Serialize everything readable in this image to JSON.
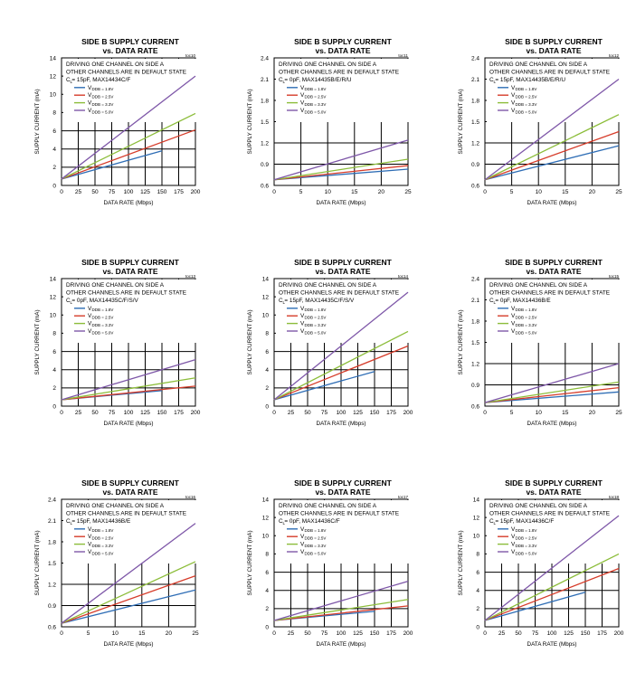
{
  "colors": {
    "s18": "#2e6db5",
    "s25": "#d63c2a",
    "s33": "#8cbd3a",
    "s50": "#7e57a8",
    "grid": "#000000"
  },
  "legend_labels": [
    "V",
    "V",
    "V",
    "V"
  ],
  "chart_data": [
    {
      "type": "line",
      "code": "toc10",
      "title": "SIDE B SUPPLY CURRENT",
      "subtitle": "vs. DATA RATE",
      "xlabel": "DATA RATE (Mbps)",
      "ylabel": "SUPPLY CURRENT (mA)",
      "xlim": [
        0,
        200
      ],
      "ylim": [
        0,
        14
      ],
      "xticks": [
        "0",
        "25",
        "50",
        "75",
        "100",
        "125",
        "150",
        "175",
        "200"
      ],
      "yticks": [
        "0",
        "2",
        "4",
        "6",
        "8",
        "10",
        "12",
        "14"
      ],
      "note": [
        "DRIVING ONE CHANNEL ON SIDE A",
        "OTHER CHANNELS ARE IN DEFAULT STATE",
        "C = 15pF, MAX14434C/F"
      ],
      "legend": [
        "DDB = 1.8V",
        "DDB = 2.5V",
        "DDB = 3.3V",
        "DDB = 5.0V"
      ],
      "series": [
        {
          "values": [
            [
              0,
              0.7
            ],
            [
              150,
              3.8
            ]
          ]
        },
        {
          "values": [
            [
              0,
              0.7
            ],
            [
              200,
              6.1
            ]
          ]
        },
        {
          "values": [
            [
              0,
              0.7
            ],
            [
              200,
              7.9
            ]
          ]
        },
        {
          "values": [
            [
              0,
              0.7
            ],
            [
              200,
              12.0
            ]
          ]
        }
      ]
    },
    {
      "type": "line",
      "code": "toc11",
      "title": "SIDE B SUPPLY CURRENT",
      "subtitle": "vs. DATA RATE",
      "xlabel": "DATA RATE (Mbps)",
      "ylabel": "SUPPLY CURRENT (mA)",
      "xlim": [
        0,
        25
      ],
      "ylim": [
        0.6,
        2.4
      ],
      "xticks": [
        "0",
        "5",
        "10",
        "15",
        "20",
        "25"
      ],
      "yticks": [
        "0.6",
        "0.9",
        "1.2",
        "1.5",
        "1.8",
        "2.1",
        "2.4"
      ],
      "note": [
        "DRIVING ONE CHANNEL ON SIDE A",
        "OTHER CHANNELS ARE IN DEFAULT STATE",
        "C = 0pF, MAX14435B/E/R/U"
      ],
      "legend": [
        "DDB = 1.8V",
        "DDB = 2.5V",
        "DDB = 3.3V",
        "DDB = 5.0V"
      ],
      "series": [
        {
          "values": [
            [
              0,
              0.68
            ],
            [
              25,
              0.83
            ]
          ]
        },
        {
          "values": [
            [
              0,
              0.68
            ],
            [
              25,
              0.88
            ]
          ]
        },
        {
          "values": [
            [
              0,
              0.68
            ],
            [
              25,
              0.97
            ]
          ]
        },
        {
          "values": [
            [
              0,
              0.68
            ],
            [
              25,
              1.24
            ]
          ]
        }
      ]
    },
    {
      "type": "line",
      "code": "toc12",
      "title": "SIDE B SUPPLY CURRENT",
      "subtitle": "vs. DATA RATE",
      "xlabel": "DATA RATE (Mbps)",
      "ylabel": "SUPPLY CURRENT (mA)",
      "xlim": [
        0,
        25
      ],
      "ylim": [
        0.6,
        2.4
      ],
      "xticks": [
        "0",
        "5",
        "10",
        "15",
        "20",
        "25"
      ],
      "yticks": [
        "0.6",
        "0.9",
        "1.2",
        "1.5",
        "1.8",
        "2.1",
        "2.4"
      ],
      "note": [
        "DRIVING ONE CHANNEL ON SIDE A",
        "OTHER CHANNELS ARE IN DEFAULT STATE",
        "C = 15pF, MAX14435B/E/R/U"
      ],
      "legend": [
        "DDB = 1.8V",
        "DDB = 2.5V",
        "DDB = 3.3V",
        "DDB = 5.0V"
      ],
      "series": [
        {
          "values": [
            [
              0,
              0.68
            ],
            [
              25,
              1.16
            ]
          ]
        },
        {
          "values": [
            [
              0,
              0.68
            ],
            [
              25,
              1.36
            ]
          ]
        },
        {
          "values": [
            [
              0,
              0.68
            ],
            [
              25,
              1.6
            ]
          ]
        },
        {
          "values": [
            [
              0,
              0.68
            ],
            [
              25,
              2.1
            ]
          ]
        }
      ]
    },
    {
      "type": "line",
      "code": "toc13",
      "title": "SIDE B SUPPLY CURRENT",
      "subtitle": "vs. DATA RATE",
      "xlabel": "DATA RATE (Mbps)",
      "ylabel": "SUPPLY CURRENT (mA)",
      "xlim": [
        0,
        200
      ],
      "ylim": [
        0,
        14
      ],
      "xticks": [
        "0",
        "25",
        "50",
        "75",
        "100",
        "125",
        "150",
        "175",
        "200"
      ],
      "yticks": [
        "0",
        "2",
        "4",
        "6",
        "8",
        "10",
        "12",
        "14"
      ],
      "note": [
        "DRIVING ONE CHANNEL ON SIDE A",
        "OTHER CHANNELS ARE IN DEFAULT STATE",
        "C = 0pF, MAX14435C/F/S/V"
      ],
      "legend": [
        "DDB = 1.8V",
        "DDB = 2.5V",
        "DDB = 3.3V",
        "DDB = 5.0V"
      ],
      "series": [
        {
          "values": [
            [
              0,
              0.7
            ],
            [
              150,
              1.7
            ]
          ]
        },
        {
          "values": [
            [
              0,
              0.7
            ],
            [
              200,
              2.2
            ]
          ]
        },
        {
          "values": [
            [
              0,
              0.7
            ],
            [
              200,
              3.1
            ]
          ]
        },
        {
          "values": [
            [
              0,
              0.7
            ],
            [
              200,
              5.1
            ]
          ]
        }
      ]
    },
    {
      "type": "line",
      "code": "toc14",
      "title": "SIDE B SUPPLY CURRENT",
      "subtitle": "vs. DATA RATE",
      "xlabel": "DATA RATE (Mbps)",
      "ylabel": "SUPPLY CURRENT (mA)",
      "xlim": [
        0,
        200
      ],
      "ylim": [
        0,
        14
      ],
      "xticks": [
        "0",
        "25",
        "50",
        "75",
        "100",
        "125",
        "150",
        "175",
        "200"
      ],
      "yticks": [
        "0",
        "2",
        "4",
        "6",
        "8",
        "10",
        "12",
        "14"
      ],
      "note": [
        "DRIVING ONE CHANNEL ON SIDE A",
        "OTHER CHANNELS ARE IN DEFAULT STATE",
        "C = 15pF, MAX14435C/F/S/V"
      ],
      "legend": [
        "DDB = 1.8V",
        "DDB = 2.5V",
        "DDB = 3.3V",
        "DDB = 5.0V"
      ],
      "series": [
        {
          "values": [
            [
              0,
              0.7
            ],
            [
              150,
              3.8
            ]
          ]
        },
        {
          "values": [
            [
              0,
              0.7
            ],
            [
              200,
              6.6
            ]
          ]
        },
        {
          "values": [
            [
              0,
              0.7
            ],
            [
              200,
              8.2
            ]
          ]
        },
        {
          "values": [
            [
              0,
              0.7
            ],
            [
              200,
              12.5
            ]
          ]
        }
      ]
    },
    {
      "type": "line",
      "code": "toc15",
      "title": "SIDE B SUPPLY CURRENT",
      "subtitle": "vs. DATA RATE",
      "xlabel": "DATA RATE (Mbps)",
      "ylabel": "SUPPLY CURRENT (mA)",
      "xlim": [
        0,
        25
      ],
      "ylim": [
        0.6,
        2.4
      ],
      "xticks": [
        "0",
        "5",
        "10",
        "15",
        "20",
        "25"
      ],
      "yticks": [
        "0.6",
        "0.9",
        "1.2",
        "1.5",
        "1.8",
        "2.1",
        "2.4"
      ],
      "note": [
        "DRIVING ONE CHANNEL ON SIDE A",
        "OTHER CHANNELS ARE IN DEFAULT STATE",
        "C = 0pF, MAX14436B/E"
      ],
      "legend": [
        "DDB = 1.8V",
        "DDB = 2.5V",
        "DDB = 3.3V",
        "DDB = 5.0V"
      ],
      "series": [
        {
          "values": [
            [
              0,
              0.65
            ],
            [
              25,
              0.8
            ]
          ]
        },
        {
          "values": [
            [
              0,
              0.65
            ],
            [
              25,
              0.86
            ]
          ]
        },
        {
          "values": [
            [
              0,
              0.65
            ],
            [
              25,
              0.94
            ]
          ]
        },
        {
          "values": [
            [
              0,
              0.65
            ],
            [
              25,
              1.2
            ]
          ]
        }
      ]
    },
    {
      "type": "line",
      "code": "toc16",
      "title": "SIDE B SUPPLY CURRENT",
      "subtitle": "vs. DATA RATE",
      "xlabel": "DATA RATE (Mbps)",
      "ylabel": "SUPPLY CURRENT (mA)",
      "xlim": [
        0,
        25
      ],
      "ylim": [
        0.6,
        2.4
      ],
      "xticks": [
        "0",
        "5",
        "10",
        "15",
        "20",
        "25"
      ],
      "yticks": [
        "0.6",
        "0.9",
        "1.2",
        "1.5",
        "1.8",
        "2.1",
        "2.4"
      ],
      "note": [
        "DRIVING ONE CHANNEL ON SIDE A",
        "OTHER CHANNELS ARE IN DEFAULT STATE",
        "C = 15pF, MAX14436B/E"
      ],
      "legend": [
        "DDB = 1.8V",
        "DDB = 2.5V",
        "DDB = 3.3V",
        "DDB = 5.0V"
      ],
      "series": [
        {
          "values": [
            [
              0,
              0.65
            ],
            [
              25,
              1.12
            ]
          ]
        },
        {
          "values": [
            [
              0,
              0.65
            ],
            [
              25,
              1.32
            ]
          ]
        },
        {
          "values": [
            [
              0,
              0.65
            ],
            [
              25,
              1.52
            ]
          ]
        },
        {
          "values": [
            [
              0,
              0.65
            ],
            [
              25,
              2.06
            ]
          ]
        }
      ]
    },
    {
      "type": "line",
      "code": "toc17",
      "title": "SIDE B SUPPLY CURRENT",
      "subtitle": "vs. DATA RATE",
      "xlabel": "DATA RATE (Mbps)",
      "ylabel": "SUPPLY CURRENT (mA)",
      "xlim": [
        0,
        200
      ],
      "ylim": [
        0,
        14
      ],
      "xticks": [
        "0",
        "25",
        "50",
        "75",
        "100",
        "125",
        "150",
        "175",
        "200"
      ],
      "yticks": [
        "0",
        "2",
        "4",
        "6",
        "8",
        "10",
        "12",
        "14"
      ],
      "note": [
        "DRIVING ONE CHANNEL ON SIDE A",
        "OTHER CHANNELS ARE IN DEFAULT STATE",
        "C = 0pF, MAX14436C/F"
      ],
      "legend": [
        "DDB = 1.8V",
        "DDB = 2.5V",
        "DDB = 3.3V",
        "DDB = 5.0V"
      ],
      "series": [
        {
          "values": [
            [
              0,
              0.7
            ],
            [
              150,
              1.7
            ]
          ]
        },
        {
          "values": [
            [
              0,
              0.7
            ],
            [
              200,
              2.3
            ]
          ]
        },
        {
          "values": [
            [
              0,
              0.7
            ],
            [
              200,
              3.0
            ]
          ]
        },
        {
          "values": [
            [
              0,
              0.7
            ],
            [
              200,
              5.0
            ]
          ]
        }
      ]
    },
    {
      "type": "line",
      "code": "toc18",
      "title": "SIDE B SUPPLY CURRENT",
      "subtitle": "vs. DATA RATE",
      "xlabel": "DATA RATE (Mbps)",
      "ylabel": "SUPPLY CURRENT (mA)",
      "xlim": [
        0,
        200
      ],
      "ylim": [
        0,
        14
      ],
      "xticks": [
        "0",
        "25",
        "50",
        "75",
        "100",
        "125",
        "150",
        "175",
        "200"
      ],
      "yticks": [
        "0",
        "2",
        "4",
        "6",
        "8",
        "10",
        "12",
        "14"
      ],
      "note": [
        "DRIVING ONE CHANNEL ON SIDE A",
        "OTHER CHANNELS ARE IN DEFAULT STATE",
        "C = 15pF, MAX14436C/F"
      ],
      "legend": [
        "DDB = 1.8V",
        "DDB = 2.5V",
        "DDB = 3.3V",
        "DDB = 5.0V"
      ],
      "series": [
        {
          "values": [
            [
              0,
              0.7
            ],
            [
              150,
              3.8
            ]
          ]
        },
        {
          "values": [
            [
              0,
              0.7
            ],
            [
              200,
              6.4
            ]
          ]
        },
        {
          "values": [
            [
              0,
              0.7
            ],
            [
              200,
              8.0
            ]
          ]
        },
        {
          "values": [
            [
              0,
              0.7
            ],
            [
              200,
              12.2
            ]
          ]
        }
      ]
    }
  ]
}
